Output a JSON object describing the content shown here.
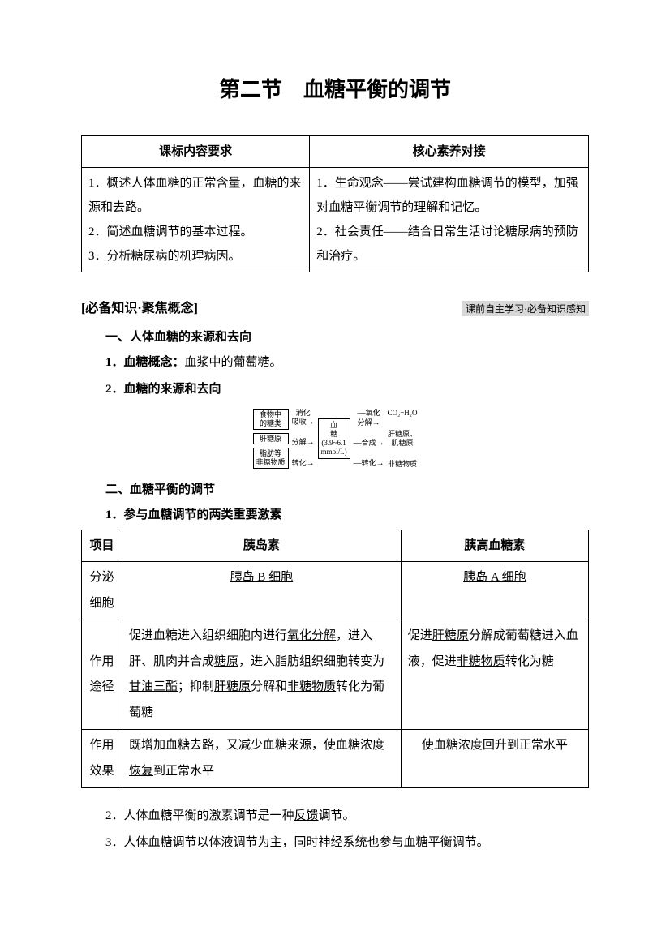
{
  "title": "第二节　血糖平衡的调节",
  "standards_table": {
    "headers": [
      "课标内容要求",
      "核心素养对接"
    ],
    "left_items": [
      "1．概述人体血糖的正常含量，血糖的来源和去路。",
      "2．简述血糖调节的基本过程。",
      "3．分析糖尿病的机理病因。"
    ],
    "right_items": [
      "1．生命观念——尝试建构血糖调节的模型，加强对血糖平衡调节的理解和记忆。",
      "2．社会责任——结合日常生活讨论糖尿病的预防和治疗。"
    ]
  },
  "section_label": "[必备知识·聚焦概念]",
  "section_note": "课前自主学习·必备知识感知",
  "sub1_title": "一、人体血糖的来源和去向",
  "sub1_items": {
    "concept_prefix": "1．血糖概念：",
    "concept_ul": "血浆中",
    "concept_suffix": "的葡萄糖。",
    "sources_title": "2．血糖的来源和去向"
  },
  "diagram": {
    "left_boxes": [
      "食物中\n的糖类",
      "肝糖原",
      "脂肪等\n非糖物质"
    ],
    "left_labels": [
      "消化\n吸收",
      "分解",
      "转化"
    ],
    "center": "血\n糖\n(3.9~6.1\nmmol/L)",
    "right_labels": [
      "氧化\n分解",
      "合成",
      "转化"
    ],
    "right_items": [
      "CO₂+H₂O",
      "肝糖原、\n肌糖原",
      "非糖物质"
    ]
  },
  "sub2_title": "二、血糖平衡的调节",
  "sub2_item1": "1．参与血糖调节的两类重要激素",
  "hormone_table": {
    "headers": [
      "项目",
      "胰岛素",
      "胰高血糖素"
    ],
    "row1_label": "分泌细胞",
    "row1_col2": "胰岛 B 细胞",
    "row1_col3": "胰岛 A 细胞",
    "row2_label": "作用途径",
    "row2_col2_parts": {
      "p1": "促进血糖进入组织细胞内进行",
      "u1": "氧化分解",
      "p2": "，进入肝、肌肉并合成",
      "u2": "糖原",
      "p3": "，进入脂肪组织细胞转变为",
      "u3": "甘油三酯",
      "p4": "；抑制",
      "u4": "肝糖原",
      "p5": "分解和",
      "u5": "非糖物质",
      "p6": "转化为葡萄糖"
    },
    "row2_col3_parts": {
      "p1": "促进",
      "u1": "肝糖原",
      "p2": "分解成葡萄糖进入血液，促进",
      "u2": "非糖物质",
      "p3": "转化为糖"
    },
    "row3_label": "作用效果",
    "row3_col2_parts": {
      "p1": "既增加血糖去路，又减少血糖来源，使血糖浓度",
      "u1": "恢复",
      "p2": "到正常水平"
    },
    "row3_col3": "使血糖浓度回升到正常水平"
  },
  "closing": {
    "line2_prefix": "2．人体血糖平衡的激素调节是一种",
    "line2_ul": "反馈",
    "line2_suffix": "调节。",
    "line3_prefix": "3．人体血糖调节以",
    "line3_ul1": "体液调节",
    "line3_mid": "为主，同时",
    "line3_ul2": "神经系统",
    "line3_suffix": "也参与血糖平衡调节。"
  }
}
